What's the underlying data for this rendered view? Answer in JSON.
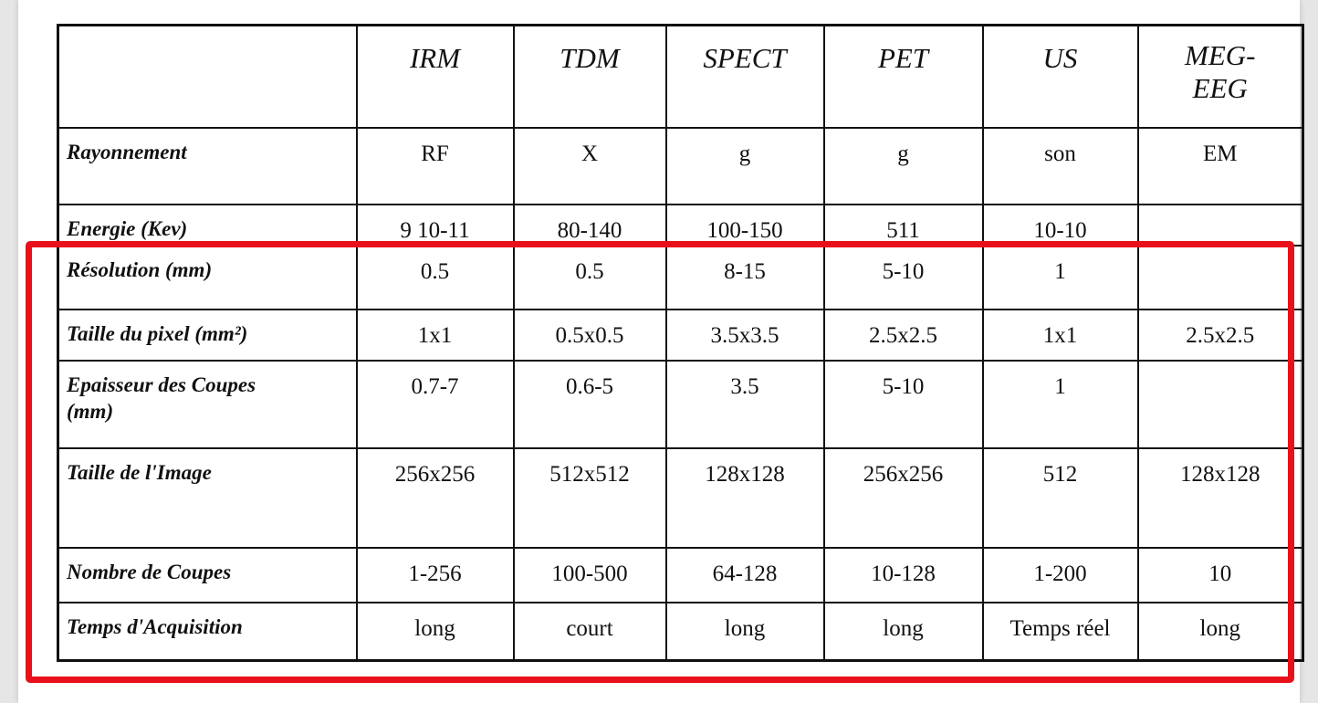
{
  "table": {
    "headers": [
      "",
      "IRM",
      "TDM",
      "SPECT",
      "PET",
      "US",
      "MEG-\nEEG"
    ],
    "rows": [
      {
        "label": "Rayonnement",
        "cells": [
          "RF",
          "X",
          "g",
          "g",
          "son",
          "EM"
        ]
      },
      {
        "label": "Energie (Kev)",
        "cells": [
          "9 10-11",
          "80-140",
          "100-150",
          "511",
          "10-10",
          ""
        ]
      },
      {
        "label": "Résolution (mm)",
        "cells": [
          "0.5",
          "0.5",
          "8-15",
          "5-10",
          "1",
          ""
        ]
      },
      {
        "label": "Taille du pixel (mm²)",
        "cells": [
          "1x1",
          "0.5x0.5",
          "3.5x3.5",
          "2.5x2.5",
          "1x1",
          "2.5x2.5"
        ]
      },
      {
        "label": "Epaisseur des Coupes (mm)",
        "cells": [
          "0.7-7",
          "0.6-5",
          "3.5",
          "5-10",
          "1",
          ""
        ]
      },
      {
        "label": "Taille de l'Image",
        "cells": [
          "256x256",
          "512x512",
          "128x128",
          "256x256",
          "512",
          "128x128"
        ]
      },
      {
        "label": "Nombre de Coupes",
        "cells": [
          "1-256",
          "100-500",
          "64-128",
          "10-128",
          "1-200",
          "10"
        ]
      },
      {
        "label": "Temps d'Acquisition",
        "cells": [
          "long",
          "court",
          "long",
          "long",
          "Temps réel",
          "long"
        ]
      }
    ]
  },
  "annotation": {
    "highlight_color": "#e8111b"
  }
}
